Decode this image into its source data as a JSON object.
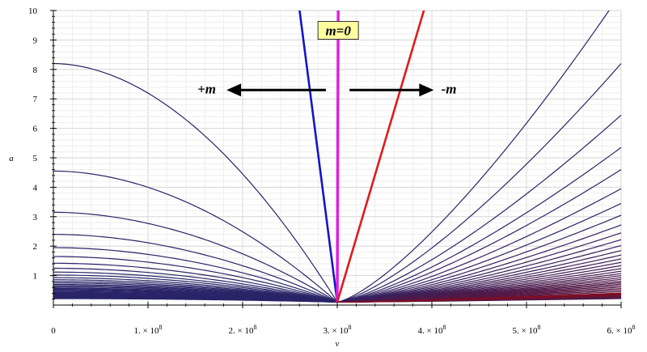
{
  "chart_data": {
    "type": "line",
    "xlabel": "v",
    "ylabel": "a",
    "xlim": [
      0,
      600000000
    ],
    "ylim": [
      0,
      10
    ],
    "x_ticks": [
      {
        "value": 0,
        "mant": "0",
        "exp": ""
      },
      {
        "value": 100000000,
        "mant": "1. × 10",
        "exp": "8"
      },
      {
        "value": 200000000,
        "mant": "2. × 10",
        "exp": "8"
      },
      {
        "value": 300000000,
        "mant": "3. × 10",
        "exp": "8"
      },
      {
        "value": 400000000,
        "mant": "4. × 10",
        "exp": "8"
      },
      {
        "value": 500000000,
        "mant": "5. × 10",
        "exp": "8"
      },
      {
        "value": 600000000,
        "mant": "6. × 10",
        "exp": "8"
      }
    ],
    "y_ticks": [
      {
        "value": 1,
        "label": "1"
      },
      {
        "value": 2,
        "label": "2"
      },
      {
        "value": 3,
        "label": "3"
      },
      {
        "value": 4,
        "label": "4"
      },
      {
        "value": 5,
        "label": "5"
      },
      {
        "value": 6,
        "label": "6"
      },
      {
        "value": 7,
        "label": "7"
      },
      {
        "value": 8,
        "label": "8"
      },
      {
        "value": 9,
        "label": "9"
      },
      {
        "value": 10,
        "label": "10"
      }
    ],
    "grid": true,
    "focus_v": 300000000,
    "baseline_a": 0.1,
    "left_family": {
      "intercepts_at_v0": [
        8.2,
        4.55,
        3.15,
        2.4,
        1.95,
        1.65,
        1.42,
        1.25,
        1.12,
        1.02,
        0.93,
        0.86,
        0.8,
        0.75,
        0.7,
        0.66,
        0.62,
        0.58,
        0.55,
        0.52,
        0.49,
        0.46,
        0.43,
        0.4,
        0.37,
        0.34,
        0.31,
        0.28,
        0.25,
        0.22
      ],
      "color": "#2a2468"
    },
    "right_family": {
      "values_at_v6e8": [
        10.6,
        8.2,
        6.45,
        5.35,
        4.6,
        3.95,
        3.45,
        3.05,
        2.72,
        2.45,
        2.22,
        2.02,
        1.85,
        1.7,
        1.57,
        1.45,
        1.34,
        1.24,
        1.15,
        1.07,
        1.0,
        0.93,
        0.87,
        0.81,
        0.76,
        0.71,
        0.66,
        0.61,
        0.56,
        0.51,
        0.46,
        0.41,
        0.36,
        0.31
      ],
      "color_near": "#2a2468",
      "color_far": "#8b0a1a"
    },
    "special_lines": [
      {
        "name": "blue",
        "x_top": 260000000,
        "color": "#1414c8"
      },
      {
        "name": "magenta",
        "x_top": 301000000,
        "color": "#e020e0"
      },
      {
        "name": "red",
        "x_top": 392000000,
        "color": "#e01a1a"
      }
    ],
    "annotations": [
      {
        "text": "m=0",
        "x": 301000000,
        "y": 9.3,
        "boxed": true
      },
      {
        "text": "+m",
        "x": 162000000,
        "y": 7.35,
        "arrow": "left",
        "arrow_from": 288000000,
        "arrow_to": 183000000,
        "arrow_y": 7.3
      },
      {
        "text": "-m",
        "x": 418000000,
        "y": 7.35,
        "arrow": "right",
        "arrow_from": 313000000,
        "arrow_to": 402000000,
        "arrow_y": 7.3
      }
    ]
  }
}
